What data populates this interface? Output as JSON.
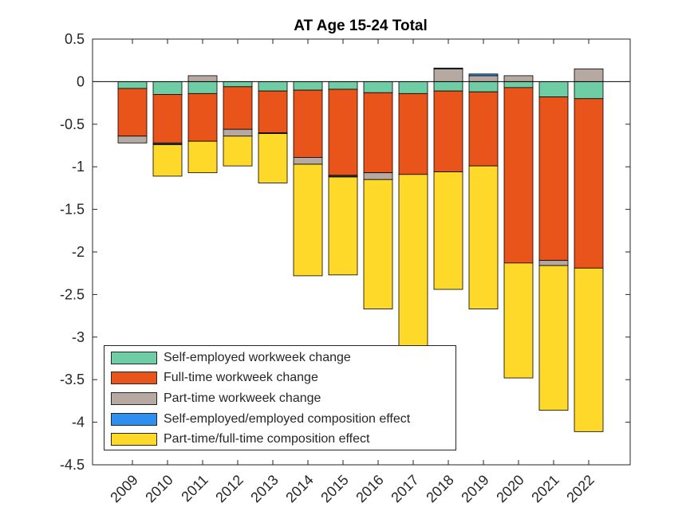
{
  "chart_data": {
    "type": "bar",
    "stacked": true,
    "title": "AT  Age 15-24  Total",
    "xlabel": "",
    "ylabel": "",
    "ylim": [
      -4.5,
      0.5
    ],
    "yticks": [
      0.5,
      0,
      -0.5,
      -1,
      -1.5,
      -2,
      -2.5,
      -3,
      -3.5,
      -4,
      -4.5
    ],
    "ytick_labels": [
      "0.5",
      "0",
      "-0.5",
      "-1",
      "-1.5",
      "-2",
      "-2.5",
      "-3",
      "-3.5",
      "-4",
      "-4.5"
    ],
    "categories": [
      "2009",
      "2010",
      "2011",
      "2012",
      "2013",
      "2014",
      "2015",
      "2016",
      "2017",
      "2018",
      "2019",
      "2020",
      "2021",
      "2022"
    ],
    "series": [
      {
        "name": "Self-employed workweek change",
        "color": "#6ECDA5",
        "values": [
          -0.08,
          -0.15,
          -0.14,
          -0.06,
          -0.11,
          -0.1,
          -0.09,
          -0.13,
          -0.14,
          -0.11,
          -0.12,
          -0.07,
          -0.18,
          -0.2
        ]
      },
      {
        "name": "Full-time workweek change",
        "color": "#E8541A",
        "values": [
          -0.56,
          -0.57,
          -0.56,
          -0.5,
          -0.49,
          -0.79,
          -1.01,
          -0.94,
          -0.95,
          -0.95,
          -0.87,
          -2.06,
          -1.92,
          -1.99
        ]
      },
      {
        "name": "Part-time workweek change",
        "color": "#B5A9A1",
        "values": [
          -0.08,
          -0.01,
          0.07,
          -0.08,
          -0.01,
          -0.08,
          -0.01,
          -0.08,
          0,
          0.15,
          0.07,
          0.07,
          -0.06,
          0.15
        ]
      },
      {
        "name": "Self-employed/employed composition effect",
        "color": "#2E8FF0",
        "values": [
          0,
          -0.01,
          0,
          0,
          0,
          0,
          -0.01,
          0,
          0,
          0.01,
          0.02,
          0,
          0,
          0
        ]
      },
      {
        "name": "Part-time/full-time composition effect",
        "color": "#FFD92A",
        "values": [
          0,
          -0.37,
          -0.37,
          -0.35,
          -0.58,
          -1.31,
          -1.15,
          -1.52,
          -2.03,
          -1.38,
          -1.68,
          -1.35,
          -1.7,
          -1.92
        ]
      }
    ],
    "legend_position": "bottom-left",
    "zero_line": true
  }
}
